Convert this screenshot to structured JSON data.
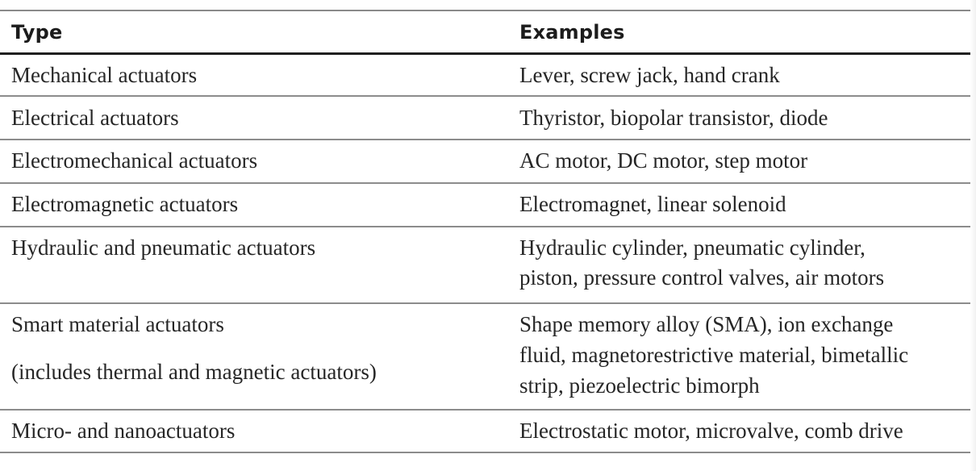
{
  "table": {
    "headers": {
      "type": "Type",
      "examples": "Examples"
    },
    "rows": [
      {
        "type": [
          "Mechanical actuators"
        ],
        "examples": [
          "Lever, screw jack, hand crank"
        ]
      },
      {
        "type": [
          "Electrical actuators"
        ],
        "examples": [
          "Thyristor, biopolar transistor, diode"
        ]
      },
      {
        "type": [
          "Electromechanical actuators"
        ],
        "examples": [
          "AC motor, DC motor, step motor"
        ]
      },
      {
        "type": [
          "Electromagnetic actuators"
        ],
        "examples": [
          "Electromagnet, linear solenoid"
        ]
      },
      {
        "type": [
          "Hydraulic and pneumatic actuators"
        ],
        "examples": [
          "Hydraulic cylinder, pneumatic cylinder,",
          "piston, pressure control valves, air motors"
        ]
      },
      {
        "type": [
          "Smart material actuators",
          "(includes thermal and magnetic actuators)"
        ],
        "examples": [
          "Shape memory alloy (SMA), ion exchange",
          "fluid, magnetorestrictive material, bimetallic",
          "strip, piezoelectric bimorph"
        ]
      },
      {
        "type": [
          "Micro- and nanoactuators"
        ],
        "examples": [
          "Electrostatic motor, microvalve, comb drive"
        ]
      }
    ]
  }
}
